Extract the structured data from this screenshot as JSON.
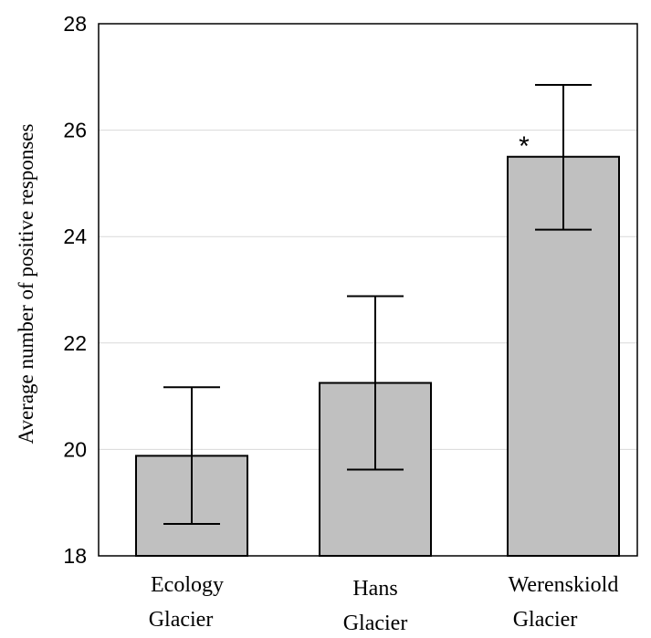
{
  "chart_data": {
    "type": "bar",
    "title": "",
    "xlabel": "",
    "ylabel": "Average number of positive responses",
    "ylim": [
      18,
      28
    ],
    "yticks": [
      18,
      20,
      22,
      24,
      26,
      28
    ],
    "grid": true,
    "categories": [
      [
        "Ecology",
        "Glacier"
      ],
      [
        "Hans",
        "Glacier"
      ],
      [
        "Werenskiold",
        "Glacier"
      ]
    ],
    "values": [
      19.88,
      21.25,
      25.5
    ],
    "error_lower": [
      18.6,
      19.62,
      24.13
    ],
    "error_upper": [
      21.17,
      22.88,
      26.85
    ],
    "annotations": [
      {
        "category_index": 2,
        "text": "*"
      }
    ],
    "colors": {
      "bar_fill": "#c0c0c0",
      "bar_stroke": "#000000",
      "grid": "#d9d9d9"
    }
  }
}
